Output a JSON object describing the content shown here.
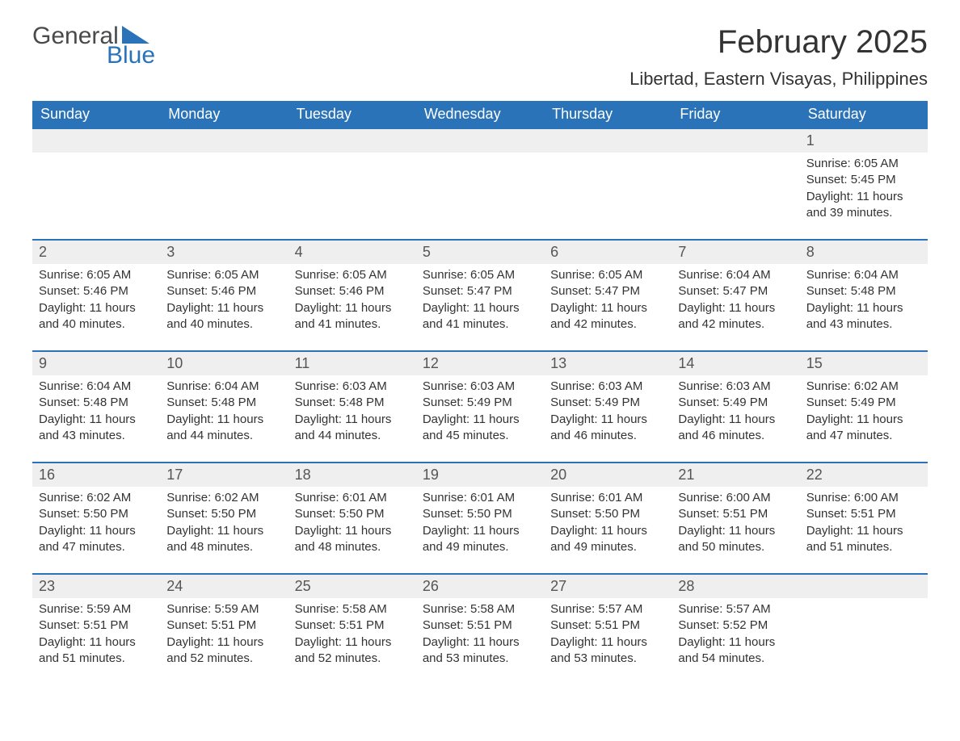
{
  "brand": {
    "word1": "General",
    "word2": "Blue",
    "accent_color": "#2a73b8",
    "text_color": "#4a4a4a"
  },
  "header": {
    "title": "February 2025",
    "location": "Libertad, Eastern Visayas, Philippines"
  },
  "colors": {
    "header_bg": "#2a73b8",
    "header_text": "#ffffff",
    "daynum_bg": "#efefef",
    "row_divider": "#2a73b8",
    "body_text": "#333333",
    "page_bg": "#ffffff"
  },
  "calendar": {
    "day_headers": [
      "Sunday",
      "Monday",
      "Tuesday",
      "Wednesday",
      "Thursday",
      "Friday",
      "Saturday"
    ],
    "weeks": [
      [
        null,
        null,
        null,
        null,
        null,
        null,
        {
          "n": "1",
          "sunrise": "6:05 AM",
          "sunset": "5:45 PM",
          "daylight": "11 hours and 39 minutes."
        }
      ],
      [
        {
          "n": "2",
          "sunrise": "6:05 AM",
          "sunset": "5:46 PM",
          "daylight": "11 hours and 40 minutes."
        },
        {
          "n": "3",
          "sunrise": "6:05 AM",
          "sunset": "5:46 PM",
          "daylight": "11 hours and 40 minutes."
        },
        {
          "n": "4",
          "sunrise": "6:05 AM",
          "sunset": "5:46 PM",
          "daylight": "11 hours and 41 minutes."
        },
        {
          "n": "5",
          "sunrise": "6:05 AM",
          "sunset": "5:47 PM",
          "daylight": "11 hours and 41 minutes."
        },
        {
          "n": "6",
          "sunrise": "6:05 AM",
          "sunset": "5:47 PM",
          "daylight": "11 hours and 42 minutes."
        },
        {
          "n": "7",
          "sunrise": "6:04 AM",
          "sunset": "5:47 PM",
          "daylight": "11 hours and 42 minutes."
        },
        {
          "n": "8",
          "sunrise": "6:04 AM",
          "sunset": "5:48 PM",
          "daylight": "11 hours and 43 minutes."
        }
      ],
      [
        {
          "n": "9",
          "sunrise": "6:04 AM",
          "sunset": "5:48 PM",
          "daylight": "11 hours and 43 minutes."
        },
        {
          "n": "10",
          "sunrise": "6:04 AM",
          "sunset": "5:48 PM",
          "daylight": "11 hours and 44 minutes."
        },
        {
          "n": "11",
          "sunrise": "6:03 AM",
          "sunset": "5:48 PM",
          "daylight": "11 hours and 44 minutes."
        },
        {
          "n": "12",
          "sunrise": "6:03 AM",
          "sunset": "5:49 PM",
          "daylight": "11 hours and 45 minutes."
        },
        {
          "n": "13",
          "sunrise": "6:03 AM",
          "sunset": "5:49 PM",
          "daylight": "11 hours and 46 minutes."
        },
        {
          "n": "14",
          "sunrise": "6:03 AM",
          "sunset": "5:49 PM",
          "daylight": "11 hours and 46 minutes."
        },
        {
          "n": "15",
          "sunrise": "6:02 AM",
          "sunset": "5:49 PM",
          "daylight": "11 hours and 47 minutes."
        }
      ],
      [
        {
          "n": "16",
          "sunrise": "6:02 AM",
          "sunset": "5:50 PM",
          "daylight": "11 hours and 47 minutes."
        },
        {
          "n": "17",
          "sunrise": "6:02 AM",
          "sunset": "5:50 PM",
          "daylight": "11 hours and 48 minutes."
        },
        {
          "n": "18",
          "sunrise": "6:01 AM",
          "sunset": "5:50 PM",
          "daylight": "11 hours and 48 minutes."
        },
        {
          "n": "19",
          "sunrise": "6:01 AM",
          "sunset": "5:50 PM",
          "daylight": "11 hours and 49 minutes."
        },
        {
          "n": "20",
          "sunrise": "6:01 AM",
          "sunset": "5:50 PM",
          "daylight": "11 hours and 49 minutes."
        },
        {
          "n": "21",
          "sunrise": "6:00 AM",
          "sunset": "5:51 PM",
          "daylight": "11 hours and 50 minutes."
        },
        {
          "n": "22",
          "sunrise": "6:00 AM",
          "sunset": "5:51 PM",
          "daylight": "11 hours and 51 minutes."
        }
      ],
      [
        {
          "n": "23",
          "sunrise": "5:59 AM",
          "sunset": "5:51 PM",
          "daylight": "11 hours and 51 minutes."
        },
        {
          "n": "24",
          "sunrise": "5:59 AM",
          "sunset": "5:51 PM",
          "daylight": "11 hours and 52 minutes."
        },
        {
          "n": "25",
          "sunrise": "5:58 AM",
          "sunset": "5:51 PM",
          "daylight": "11 hours and 52 minutes."
        },
        {
          "n": "26",
          "sunrise": "5:58 AM",
          "sunset": "5:51 PM",
          "daylight": "11 hours and 53 minutes."
        },
        {
          "n": "27",
          "sunrise": "5:57 AM",
          "sunset": "5:51 PM",
          "daylight": "11 hours and 53 minutes."
        },
        {
          "n": "28",
          "sunrise": "5:57 AM",
          "sunset": "5:52 PM",
          "daylight": "11 hours and 54 minutes."
        },
        null
      ]
    ],
    "labels": {
      "sunrise": "Sunrise:",
      "sunset": "Sunset:",
      "daylight": "Daylight:"
    }
  }
}
